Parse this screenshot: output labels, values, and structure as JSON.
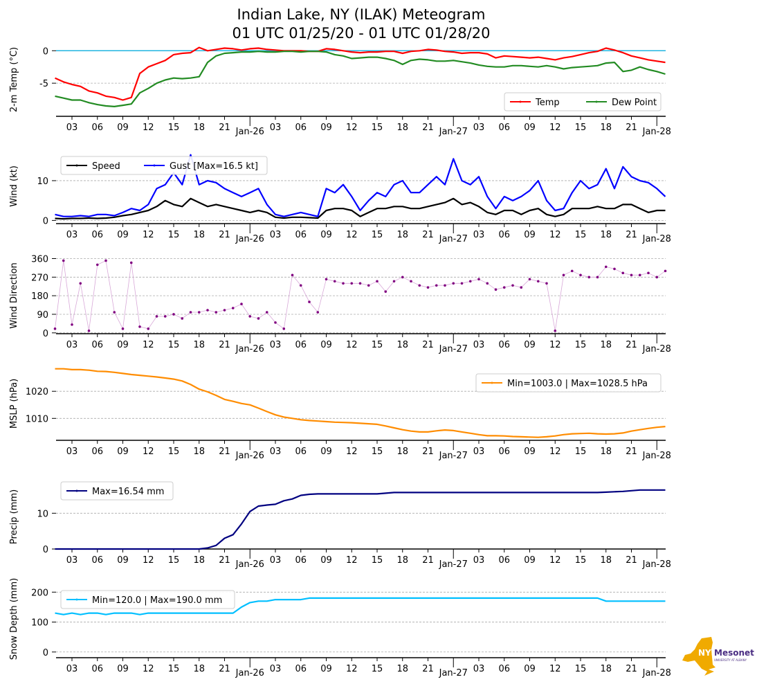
{
  "chart_data": [
    {
      "type": "line",
      "title_line1": "Indian Lake, NY (ILAK) Meteogram",
      "title_line2": "01 UTC 01/25/20 - 01 UTC 01/28/20",
      "x_axis": {
        "unit": "hours since 01 UTC 01/25/20",
        "range": [
          0,
          72
        ],
        "tick_hours": [
          2,
          5,
          8,
          11,
          14,
          17,
          20,
          23,
          26,
          29,
          32,
          35,
          38,
          41,
          44,
          47,
          50,
          53,
          56,
          59,
          62,
          65,
          68,
          71
        ],
        "tick_labels": [
          "03",
          "06",
          "09",
          "12",
          "15",
          "18",
          "21",
          "Jan-26",
          "03",
          "06",
          "09",
          "12",
          "15",
          "18",
          "21",
          "Jan-27",
          "03",
          "06",
          "09",
          "12",
          "15",
          "18",
          "21",
          "Jan-28"
        ]
      },
      "panels": [
        {
          "id": "temp",
          "ylabel": "2-m Temp (°C)",
          "ylim": [
            -10.1,
            1.2
          ],
          "yticks": [
            -5,
            0
          ],
          "ytick_labels": [
            "-5",
            "0"
          ],
          "zero_line_color": "#1fb4e0",
          "legend_position": "bottom-right",
          "series": [
            {
              "name": "Temp",
              "color": "#ff0000",
              "values": [
                -4.2,
                -4.8,
                -5.2,
                -5.5,
                -6.2,
                -6.5,
                -7.0,
                -7.2,
                -7.6,
                -7.2,
                -3.5,
                -2.5,
                -2.0,
                -1.5,
                -0.6,
                -0.4,
                -0.3,
                0.5,
                0.0,
                0.2,
                0.4,
                0.3,
                0.1,
                0.3,
                0.4,
                0.2,
                0.1,
                0.0,
                0.0,
                0.0,
                -0.1,
                -0.1,
                0.3,
                0.2,
                0.0,
                -0.2,
                -0.3,
                -0.2,
                -0.2,
                -0.1,
                -0.1,
                -0.4,
                -0.1,
                0.0,
                0.2,
                0.1,
                -0.1,
                -0.2,
                -0.4,
                -0.3,
                -0.3,
                -0.5,
                -1.1,
                -0.8,
                -0.9,
                -1.0,
                -1.1,
                -1.0,
                -1.2,
                -1.4,
                -1.1,
                -0.9,
                -0.6,
                -0.3,
                -0.1,
                0.4,
                0.1,
                -0.3,
                -0.8,
                -1.1,
                -1.4,
                -1.6,
                -1.8
              ]
            },
            {
              "name": "Dew Point",
              "color": "#228b22",
              "values": [
                -7.0,
                -7.3,
                -7.6,
                -7.6,
                -8.0,
                -8.3,
                -8.5,
                -8.6,
                -8.4,
                -8.2,
                -6.5,
                -5.8,
                -5.0,
                -4.5,
                -4.2,
                -4.3,
                -4.2,
                -4.0,
                -1.8,
                -0.8,
                -0.4,
                -0.3,
                -0.2,
                -0.2,
                -0.1,
                -0.2,
                -0.2,
                -0.1,
                -0.1,
                -0.2,
                -0.1,
                -0.1,
                -0.2,
                -0.6,
                -0.8,
                -1.2,
                -1.1,
                -1.0,
                -1.0,
                -1.2,
                -1.5,
                -2.1,
                -1.5,
                -1.3,
                -1.4,
                -1.6,
                -1.6,
                -1.5,
                -1.7,
                -1.9,
                -2.2,
                -2.4,
                -2.5,
                -2.5,
                -2.3,
                -2.3,
                -2.4,
                -2.5,
                -2.3,
                -2.5,
                -2.8,
                -2.6,
                -2.5,
                -2.4,
                -2.3,
                -1.9,
                -1.8,
                -3.2,
                -3.0,
                -2.5,
                -2.9,
                -3.2,
                -3.6
              ]
            }
          ]
        },
        {
          "id": "wind",
          "ylabel": "Wind (kt)",
          "ylim": [
            -0.8,
            18
          ],
          "yticks": [
            0,
            10
          ],
          "ytick_labels": [
            "0",
            "10"
          ],
          "legend_position": "top-left",
          "series": [
            {
              "name": "Speed",
              "color": "#000000",
              "values": [
                0.5,
                0.4,
                0.5,
                0.5,
                0.6,
                0.5,
                0.6,
                0.8,
                1.2,
                1.5,
                2.0,
                2.5,
                3.5,
                5.0,
                4.0,
                3.5,
                5.5,
                4.5,
                3.5,
                4.0,
                3.5,
                3.0,
                2.5,
                2.0,
                2.5,
                2.0,
                0.8,
                0.6,
                0.8,
                0.8,
                0.7,
                0.6,
                2.5,
                3.0,
                3.0,
                2.5,
                1.0,
                2.0,
                3.0,
                3.0,
                3.5,
                3.5,
                3.0,
                3.0,
                3.5,
                4.0,
                4.5,
                5.5,
                4.0,
                4.5,
                3.5,
                2.0,
                1.5,
                2.5,
                2.5,
                1.5,
                2.5,
                3.0,
                1.5,
                1.0,
                1.5,
                3.0,
                3.0,
                3.0,
                3.5,
                3.0,
                3.0,
                4.0,
                4.0,
                3.0,
                2.0,
                2.5,
                2.5
              ]
            },
            {
              "name": "Gust [Max=16.5 kt]",
              "color": "#0000ff",
              "values": [
                1.5,
                1.0,
                1.0,
                1.2,
                1.0,
                1.5,
                1.5,
                1.2,
                2.0,
                3.0,
                2.5,
                4.0,
                8.0,
                9.0,
                12.0,
                9.0,
                16.5,
                9.0,
                10.0,
                9.5,
                8.0,
                7.0,
                6.0,
                7.0,
                8.0,
                4.0,
                1.5,
                1.0,
                1.5,
                2.0,
                1.5,
                1.0,
                8.0,
                7.0,
                9.0,
                6.0,
                2.5,
                5.0,
                7.0,
                6.0,
                9.0,
                10.0,
                7.0,
                7.0,
                9.0,
                11.0,
                9.0,
                15.5,
                10.0,
                9.0,
                11.0,
                6.0,
                3.0,
                6.0,
                5.0,
                6.0,
                7.5,
                10.0,
                5.0,
                2.5,
                3.0,
                7.0,
                10.0,
                8.0,
                9.0,
                13.0,
                8.0,
                13.5,
                11.0,
                10.0,
                9.5,
                8.0,
                6.0
              ]
            }
          ]
        },
        {
          "id": "direction",
          "ylabel": "Wind Direction",
          "ylim": [
            -4,
            365
          ],
          "yticks": [
            0,
            90,
            180,
            270,
            360
          ],
          "ytick_labels": [
            "0",
            "90",
            "180",
            "270",
            "360"
          ],
          "legend_position": "none",
          "series": [
            {
              "name": "Wind Direction",
              "color": "#800080",
              "line_color": "#d8a8d8",
              "values": [
                20,
                350,
                40,
                240,
                10,
                330,
                350,
                100,
                20,
                340,
                30,
                20,
                80,
                80,
                90,
                70,
                100,
                100,
                110,
                100,
                110,
                120,
                140,
                80,
                70,
                100,
                50,
                20,
                280,
                230,
                150,
                100,
                260,
                250,
                240,
                240,
                240,
                230,
                250,
                200,
                250,
                270,
                250,
                230,
                220,
                230,
                230,
                240,
                240,
                250,
                260,
                240,
                210,
                220,
                230,
                220,
                260,
                250,
                240,
                10,
                280,
                300,
                280,
                270,
                270,
                320,
                310,
                290,
                280,
                280,
                290,
                270,
                300
              ]
            }
          ]
        },
        {
          "id": "mslp",
          "ylabel": "MSLP (hPa)",
          "ylim": [
            1001.9,
            1029.0
          ],
          "yticks": [
            1010,
            1020
          ],
          "ytick_labels": [
            "1010",
            "1020"
          ],
          "legend_position": "top-right",
          "series": [
            {
              "name": "Min=1003.0 | Max=1028.5 hPa",
              "color": "#ff8c00",
              "values": [
                1028.3,
                1028.3,
                1028.0,
                1028.0,
                1027.8,
                1027.4,
                1027.3,
                1027.0,
                1026.6,
                1026.2,
                1025.9,
                1025.6,
                1025.3,
                1024.9,
                1024.5,
                1023.8,
                1022.5,
                1020.8,
                1019.8,
                1018.5,
                1017.0,
                1016.3,
                1015.5,
                1015.0,
                1013.8,
                1012.5,
                1011.3,
                1010.5,
                1010.0,
                1009.5,
                1009.2,
                1009.0,
                1008.8,
                1008.6,
                1008.5,
                1008.4,
                1008.2,
                1008.0,
                1007.8,
                1007.2,
                1006.5,
                1005.8,
                1005.3,
                1005.0,
                1005.0,
                1005.4,
                1005.7,
                1005.5,
                1005.0,
                1004.5,
                1004.0,
                1003.6,
                1003.6,
                1003.5,
                1003.3,
                1003.2,
                1003.1,
                1003.0,
                1003.2,
                1003.5,
                1004.0,
                1004.3,
                1004.4,
                1004.5,
                1004.3,
                1004.2,
                1004.3,
                1004.6,
                1005.3,
                1005.8,
                1006.3,
                1006.7,
                1007.0
              ]
            }
          ]
        },
        {
          "id": "precip",
          "ylabel": "Precip (mm)",
          "ylim": [
            0,
            18
          ],
          "yticks": [
            0,
            10
          ],
          "ytick_labels": [
            "0",
            "10"
          ],
          "legend_position": "top-left",
          "series": [
            {
              "name": "Max=16.54 mm",
              "color": "#000080",
              "values": [
                0,
                0,
                0,
                0,
                0,
                0,
                0,
                0,
                0,
                0,
                0,
                0,
                0,
                0,
                0,
                0,
                0,
                0,
                0.3,
                1.0,
                3.0,
                4.0,
                7.0,
                10.5,
                12.0,
                12.3,
                12.5,
                13.5,
                14.0,
                15.0,
                15.3,
                15.4,
                15.4,
                15.4,
                15.4,
                15.4,
                15.4,
                15.4,
                15.4,
                15.6,
                15.8,
                15.8,
                15.8,
                15.8,
                15.8,
                15.8,
                15.8,
                15.8,
                15.8,
                15.8,
                15.8,
                15.8,
                15.8,
                15.8,
                15.8,
                15.8,
                15.8,
                15.8,
                15.8,
                15.8,
                15.8,
                15.8,
                15.8,
                15.8,
                15.8,
                15.9,
                16.0,
                16.1,
                16.3,
                16.5,
                16.5,
                16.5,
                16.5
              ]
            }
          ]
        },
        {
          "id": "snow",
          "ylabel": "Snow Depth (mm)",
          "ylim": [
            -19,
            240
          ],
          "yticks": [
            0,
            100,
            200
          ],
          "ytick_labels": [
            "0",
            "100",
            "200"
          ],
          "legend_position": "top-left",
          "series": [
            {
              "name": "Min=120.0 | Max=190.0 mm",
              "color": "#00bfff",
              "values": [
                130,
                125,
                130,
                125,
                130,
                130,
                125,
                130,
                130,
                130,
                125,
                130,
                130,
                130,
                130,
                130,
                130,
                130,
                130,
                130,
                130,
                130,
                150,
                165,
                170,
                170,
                175,
                175,
                175,
                175,
                180,
                180,
                180,
                180,
                180,
                180,
                180,
                180,
                180,
                180,
                180,
                180,
                180,
                180,
                180,
                180,
                180,
                180,
                180,
                180,
                180,
                180,
                180,
                180,
                180,
                180,
                180,
                180,
                180,
                180,
                180,
                180,
                180,
                180,
                180,
                170,
                170,
                170,
                170,
                170,
                170,
                170,
                170
              ]
            }
          ]
        }
      ]
    }
  ],
  "logo": {
    "text_nys": "NYS",
    "text_mesonet": "Mesonet",
    "text_university": "UNIVERSITY AT ALBANY",
    "gold": "#f0aa00",
    "purple": "#4b2e83"
  }
}
